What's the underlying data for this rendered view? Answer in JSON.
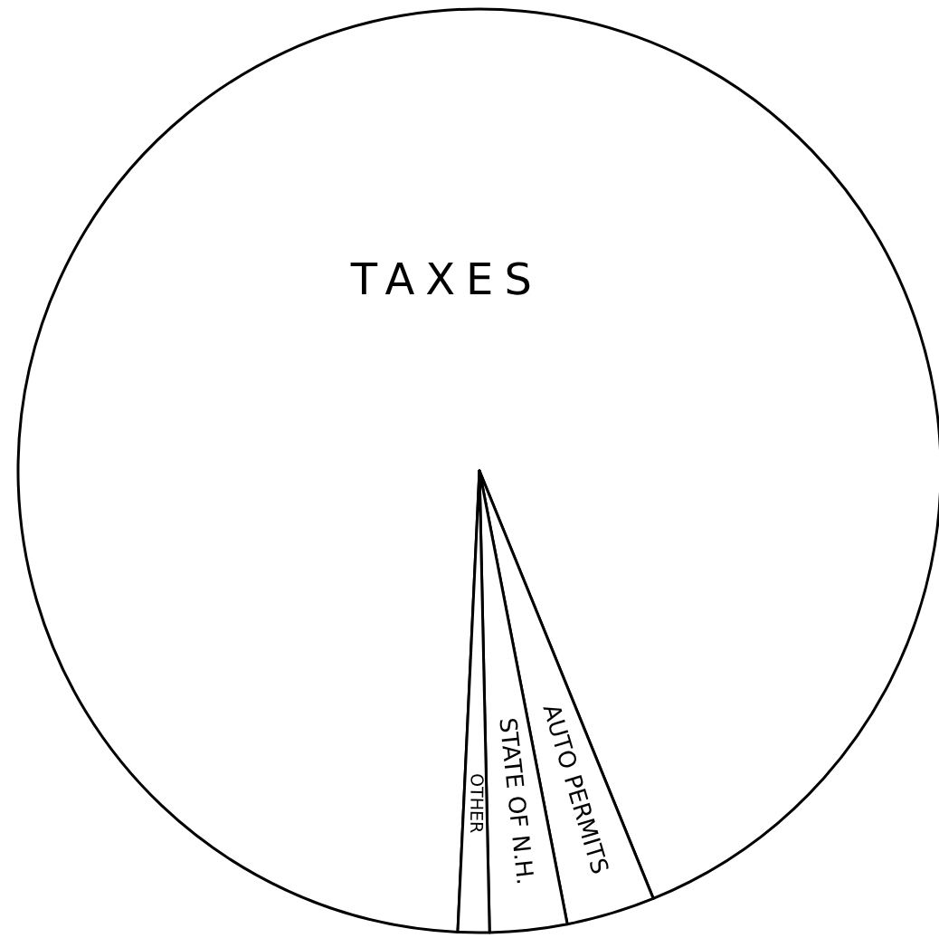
{
  "chart_data": {
    "type": "pie",
    "categories": [
      "TAXES",
      "AUTO PERMITS",
      "STATE OF N.H.",
      "OTHER"
    ],
    "values": [
      93.1,
      3.1,
      2.7,
      1.1
    ],
    "colors": [
      "#ffffff",
      "#ffffff",
      "#ffffff",
      "#ffffff"
    ]
  }
}
